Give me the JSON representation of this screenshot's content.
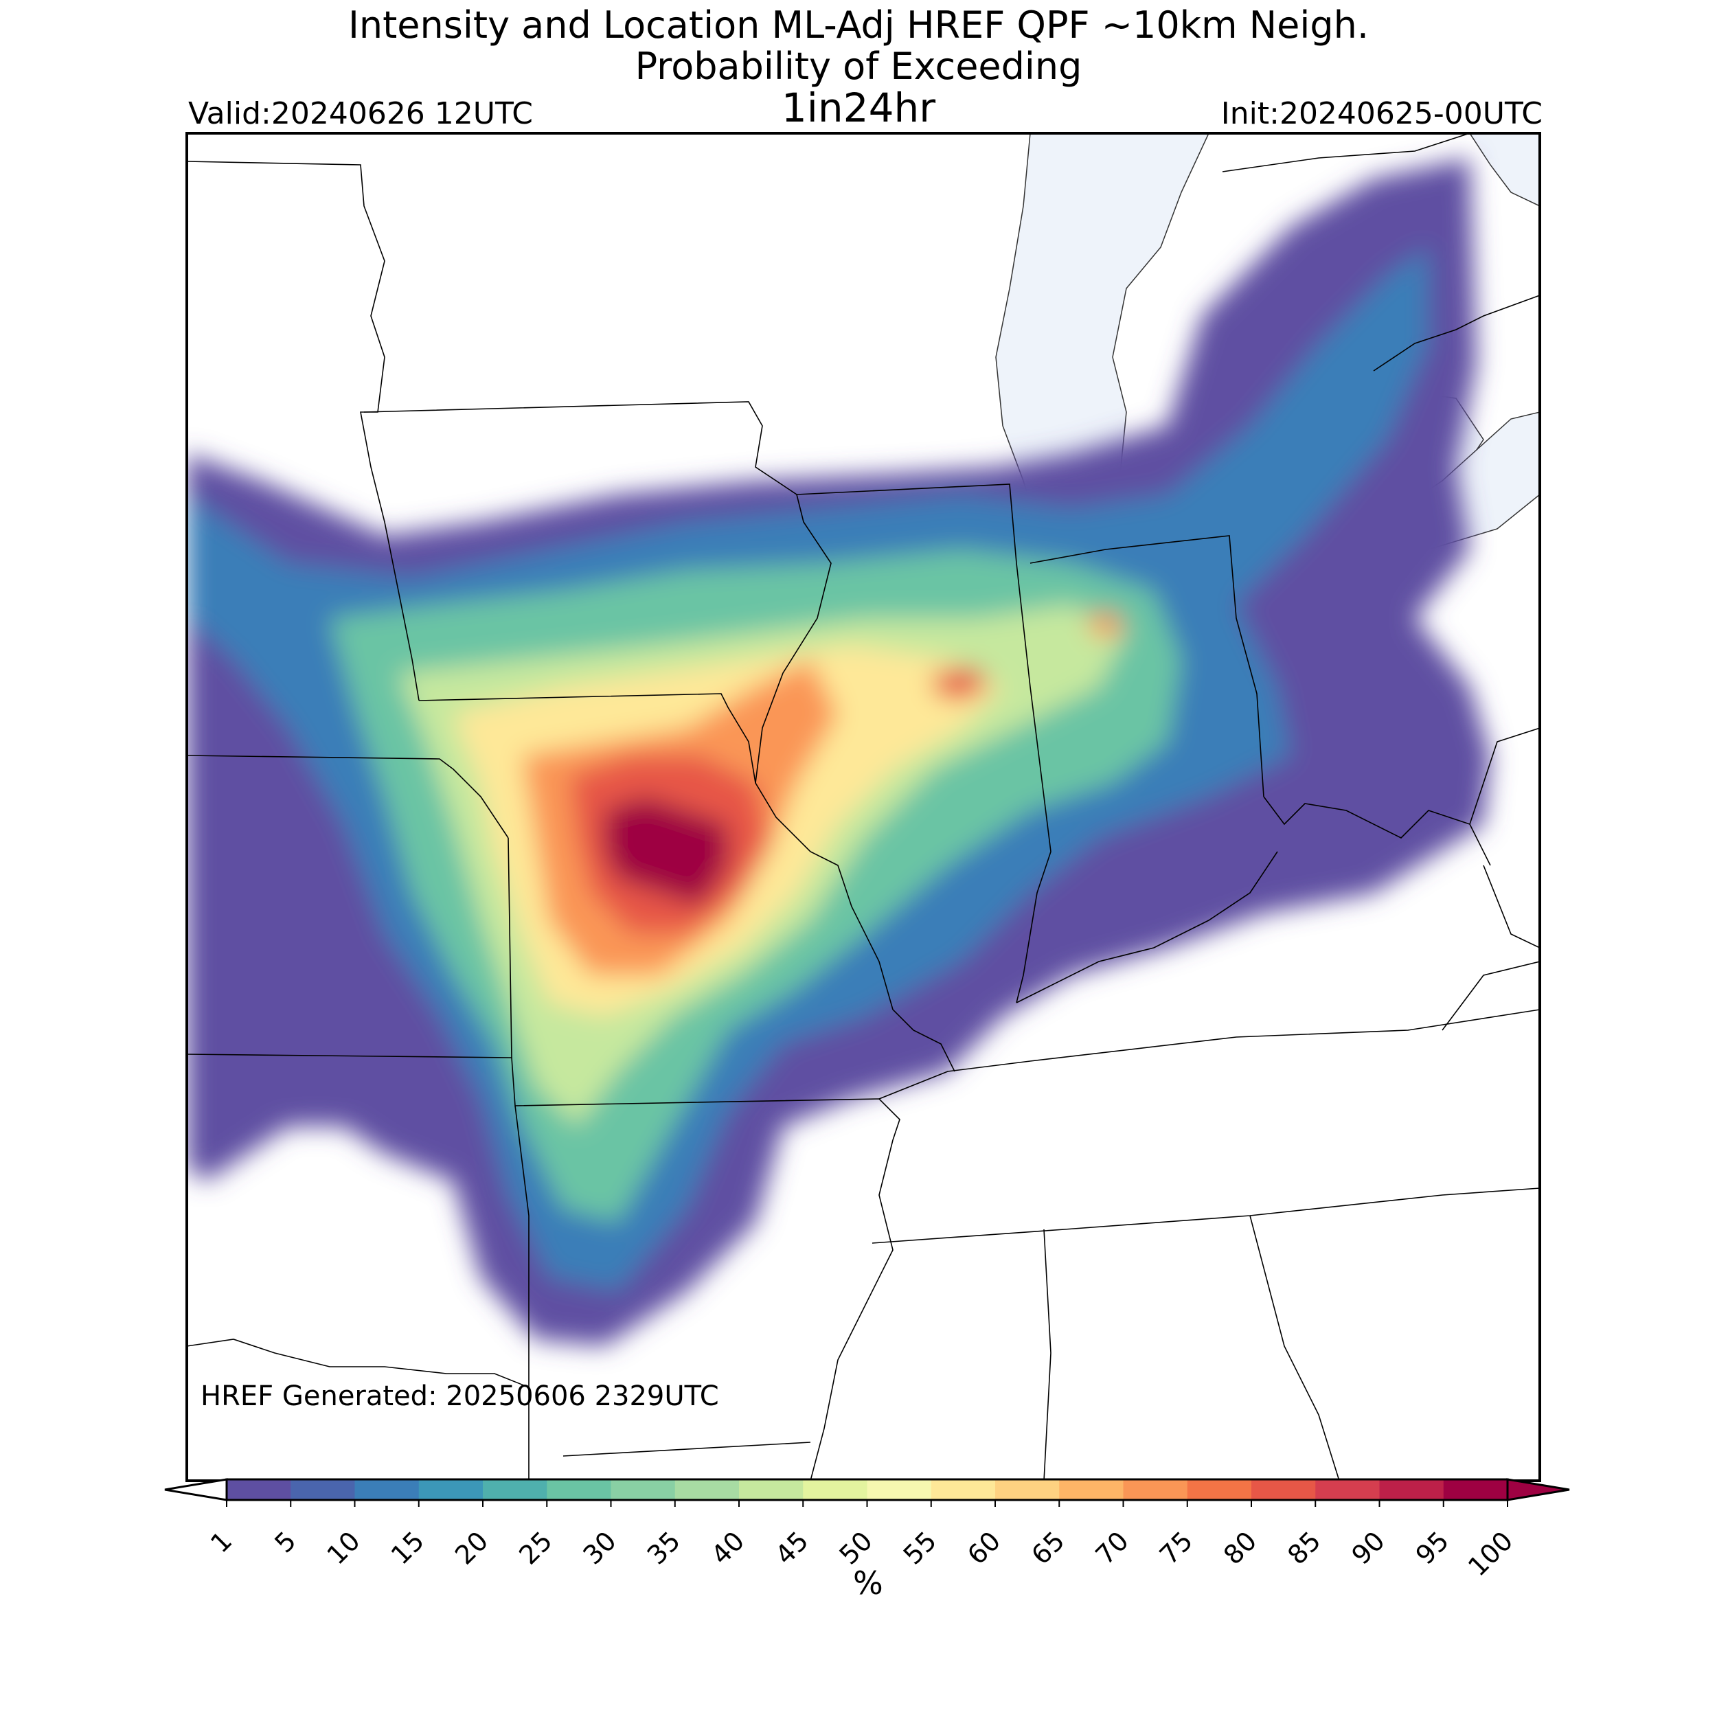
{
  "title": {
    "line1": "Intensity and Location ML-Adj HREF QPF ~10km Neigh.",
    "line2": "Probability of Exceeding",
    "line3": "1in24hr"
  },
  "valid": "Valid:20240626 12UTC",
  "init": "Init:20240625-00UTC",
  "generated": "HREF Generated: 20250606 2329UTC",
  "colorbar": {
    "unit": "%",
    "ticks": [
      "1",
      "5",
      "10",
      "15",
      "20",
      "25",
      "30",
      "35",
      "40",
      "45",
      "50",
      "55",
      "60",
      "65",
      "70",
      "75",
      "80",
      "85",
      "90",
      "95",
      "100"
    ],
    "colors": [
      "#5e4fa2",
      "#4a65ad",
      "#3b7eb8",
      "#3c97b8",
      "#4fb0ad",
      "#6ac4a4",
      "#89d0a4",
      "#a8dca3",
      "#c6e89e",
      "#e3f49f",
      "#f6f8b0",
      "#fee898",
      "#fed281",
      "#fdb567",
      "#fa9656",
      "#f47446",
      "#e75747",
      "#d53e4f",
      "#bd2049",
      "#9e0142"
    ],
    "under_color": "#ffffff",
    "over_color": "#9e0142"
  },
  "map": {
    "region": "Central and eastern United States",
    "ocean_lake_color": "#eef3fa"
  }
}
